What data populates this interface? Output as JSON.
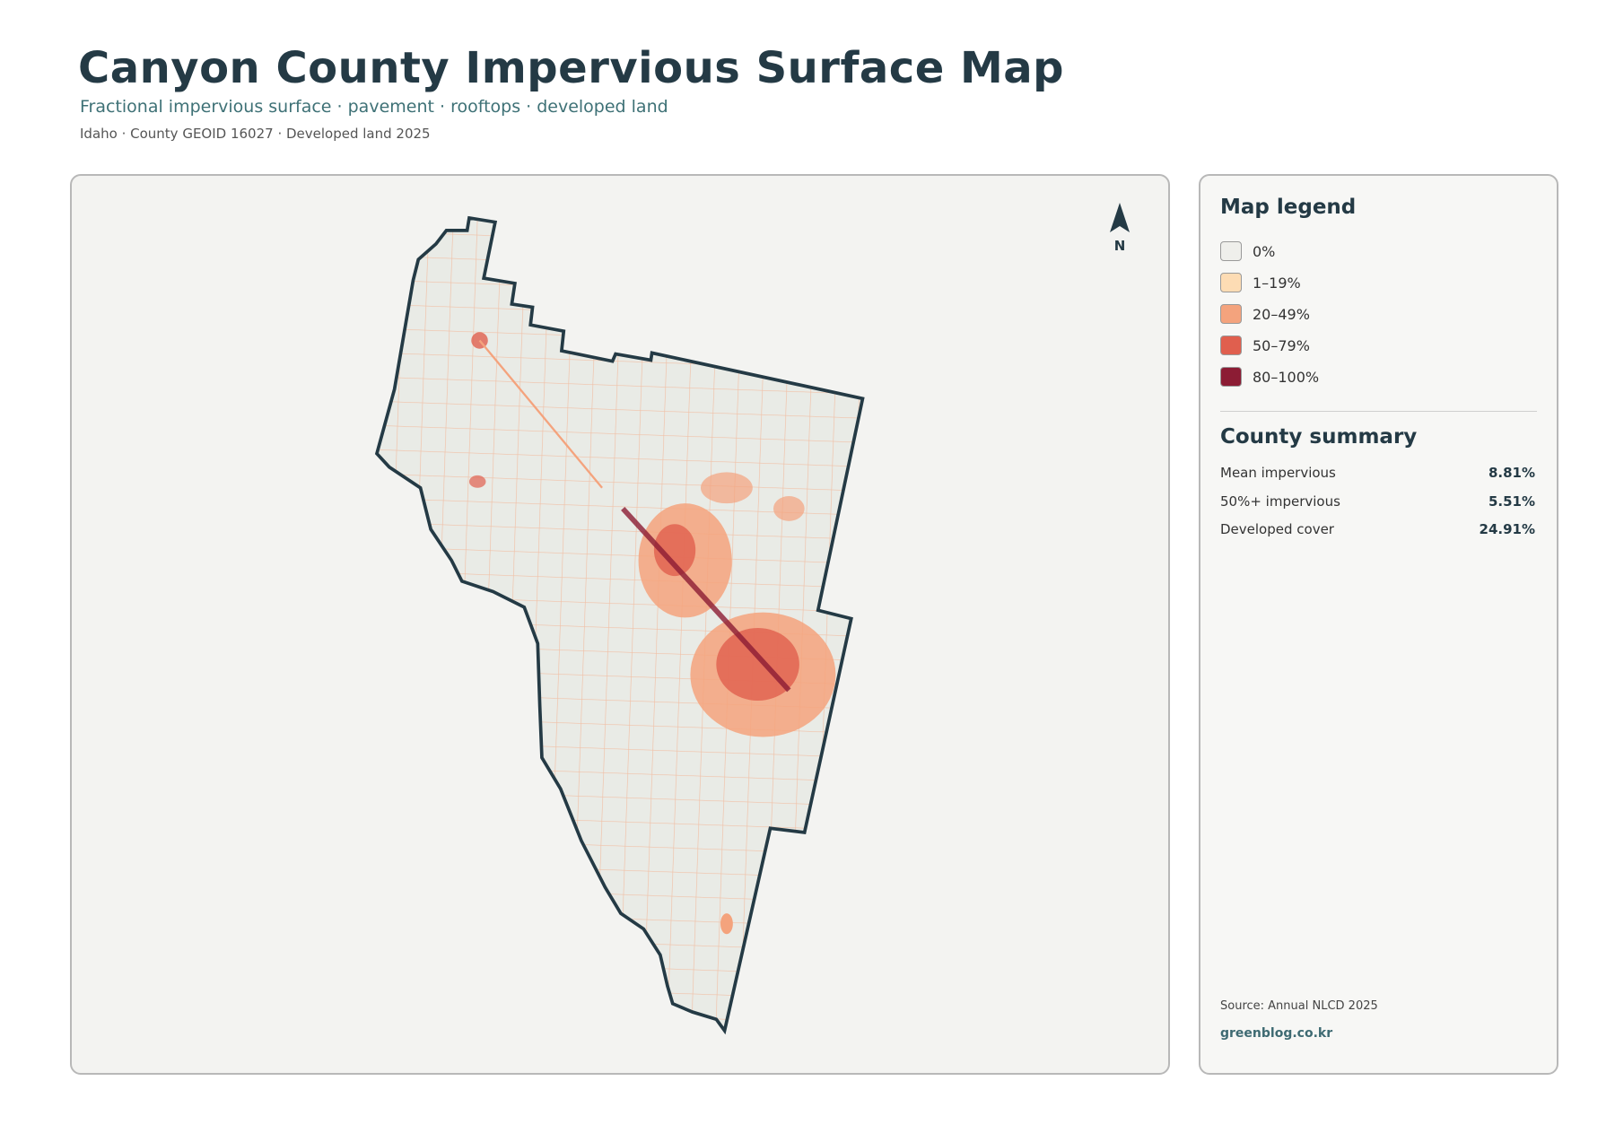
{
  "header": {
    "title": "Canyon County Impervious Surface Map",
    "subtitle": "Fractional impervious surface · pavement · rooftops · developed land",
    "meta": "Idaho · County GEOID 16027 · Developed land 2025"
  },
  "map": {
    "north_label": "N"
  },
  "legend": {
    "title": "Map legend",
    "items": [
      {
        "label": "0%",
        "color": "#efefeb"
      },
      {
        "label": "1–19%",
        "color": "#fddcb4"
      },
      {
        "label": "20–49%",
        "color": "#f4a37d"
      },
      {
        "label": "50–79%",
        "color": "#e05f4e"
      },
      {
        "label": "80–100%",
        "color": "#8c1c34"
      }
    ]
  },
  "summary": {
    "title": "County summary",
    "rows": [
      {
        "label": "Mean impervious",
        "value": "8.81%"
      },
      {
        "label": "50%+ impervious",
        "value": "5.51%"
      },
      {
        "label": "Developed cover",
        "value": "24.91%"
      }
    ]
  },
  "footer": {
    "source": "Source: Annual NLCD 2025",
    "site": "greenblog.co.kr"
  }
}
